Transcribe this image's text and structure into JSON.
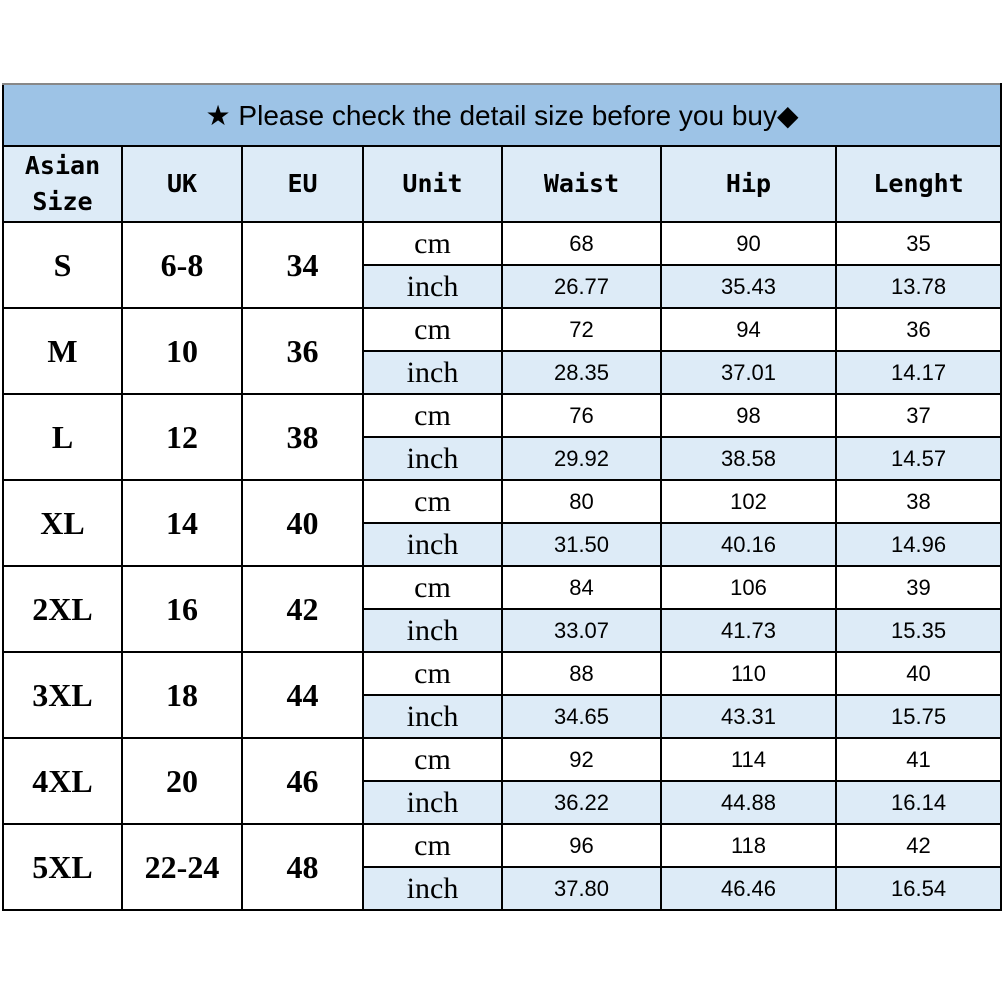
{
  "title": "★ Please check the detail size before you buy◆",
  "headers": [
    "Asian Size",
    "UK",
    "EU",
    "Unit",
    "Waist",
    "Hip",
    "Lenght"
  ],
  "colors": {
    "title_bg": "#9dc3e6",
    "header_bg": "#ddebf7",
    "inch_row_bg": "#ddebf7"
  },
  "rows": [
    {
      "asian": "S",
      "uk": "6-8",
      "eu": "34",
      "cm": {
        "unit": "cm",
        "waist": "68",
        "hip": "90",
        "length": "35"
      },
      "inch": {
        "unit": "inch",
        "waist": "26.77",
        "hip": "35.43",
        "length": "13.78"
      }
    },
    {
      "asian": "M",
      "uk": "10",
      "eu": "36",
      "cm": {
        "unit": "cm",
        "waist": "72",
        "hip": "94",
        "length": "36"
      },
      "inch": {
        "unit": "inch",
        "waist": "28.35",
        "hip": "37.01",
        "length": "14.17"
      }
    },
    {
      "asian": "L",
      "uk": "12",
      "eu": "38",
      "cm": {
        "unit": "cm",
        "waist": "76",
        "hip": "98",
        "length": "37"
      },
      "inch": {
        "unit": "inch",
        "waist": "29.92",
        "hip": "38.58",
        "length": "14.57"
      }
    },
    {
      "asian": "XL",
      "uk": "14",
      "eu": "40",
      "cm": {
        "unit": "cm",
        "waist": "80",
        "hip": "102",
        "length": "38"
      },
      "inch": {
        "unit": "inch",
        "waist": "31.50",
        "hip": "40.16",
        "length": "14.96"
      }
    },
    {
      "asian": "2XL",
      "uk": "16",
      "eu": "42",
      "cm": {
        "unit": "cm",
        "waist": "84",
        "hip": "106",
        "length": "39"
      },
      "inch": {
        "unit": "inch",
        "waist": "33.07",
        "hip": "41.73",
        "length": "15.35"
      }
    },
    {
      "asian": "3XL",
      "uk": "18",
      "eu": "44",
      "cm": {
        "unit": "cm",
        "waist": "88",
        "hip": "110",
        "length": "40"
      },
      "inch": {
        "unit": "inch",
        "waist": "34.65",
        "hip": "43.31",
        "length": "15.75"
      }
    },
    {
      "asian": "4XL",
      "uk": "20",
      "eu": "46",
      "cm": {
        "unit": "cm",
        "waist": "92",
        "hip": "114",
        "length": "41"
      },
      "inch": {
        "unit": "inch",
        "waist": "36.22",
        "hip": "44.88",
        "length": "16.14"
      }
    },
    {
      "asian": "5XL",
      "uk": "22-24",
      "eu": "48",
      "cm": {
        "unit": "cm",
        "waist": "96",
        "hip": "118",
        "length": "42"
      },
      "inch": {
        "unit": "inch",
        "waist": "37.80",
        "hip": "46.46",
        "length": "16.54"
      }
    }
  ]
}
